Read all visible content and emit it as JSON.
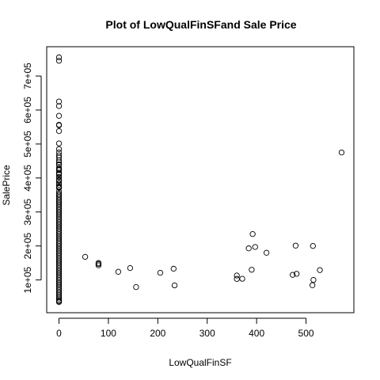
{
  "chart_data": {
    "type": "scatter",
    "title": "Plot of LowQualFinSFand Sale Price",
    "xlabel": "LowQualFinSF",
    "ylabel": "SalePrice",
    "xlim": [
      0,
      572
    ],
    "ylim": [
      34900,
      755000
    ],
    "x_ticks": [
      0,
      100,
      200,
      300,
      400,
      500
    ],
    "x_tick_labels": [
      "0",
      "100",
      "200",
      "300",
      "400",
      "500"
    ],
    "y_ticks": [
      100000,
      200000,
      300000,
      400000,
      500000,
      600000,
      700000
    ],
    "y_tick_labels": [
      "1e+05",
      "2e+05",
      "3e+05",
      "4e+05",
      "5e+05",
      "6e+05",
      "7e+05"
    ],
    "grid": false,
    "legend": "none",
    "marker_color": "#000000",
    "points": [
      [
        0,
        755000
      ],
      [
        0,
        745000
      ],
      [
        0,
        625000
      ],
      [
        0,
        611657
      ],
      [
        0,
        582933
      ],
      [
        0,
        556581
      ],
      [
        0,
        555000
      ],
      [
        0,
        538000
      ],
      [
        0,
        501837
      ],
      [
        0,
        485000
      ],
      [
        0,
        475000
      ],
      [
        0,
        466500
      ],
      [
        0,
        460000
      ],
      [
        0,
        451950
      ],
      [
        0,
        446261
      ],
      [
        0,
        440000
      ],
      [
        0,
        438780
      ],
      [
        0,
        430000
      ],
      [
        0,
        426000
      ],
      [
        0,
        423000
      ],
      [
        0,
        415298
      ],
      [
        0,
        412500
      ],
      [
        0,
        410000
      ],
      [
        0,
        402861
      ],
      [
        0,
        402000
      ],
      [
        0,
        394617
      ],
      [
        0,
        392500
      ],
      [
        0,
        392000
      ],
      [
        0,
        385000
      ],
      [
        0,
        380000
      ],
      [
        0,
        375000
      ],
      [
        0,
        372500
      ],
      [
        0,
        370878
      ],
      [
        0,
        360000
      ],
      [
        0,
        354000
      ],
      [
        0,
        350000
      ],
      [
        0,
        345000
      ],
      [
        0,
        340000
      ],
      [
        0,
        335000
      ],
      [
        0,
        330000
      ],
      [
        0,
        325000
      ],
      [
        0,
        320000
      ],
      [
        0,
        315000
      ],
      [
        0,
        310000
      ],
      [
        0,
        305000
      ],
      [
        0,
        300000
      ],
      [
        0,
        295000
      ],
      [
        0,
        290000
      ],
      [
        0,
        285000
      ],
      [
        0,
        280000
      ],
      [
        0,
        275000
      ],
      [
        0,
        270000
      ],
      [
        0,
        265000
      ],
      [
        0,
        260000
      ],
      [
        0,
        255000
      ],
      [
        0,
        250000
      ],
      [
        0,
        245000
      ],
      [
        0,
        240000
      ],
      [
        0,
        235000
      ],
      [
        0,
        230000
      ],
      [
        0,
        225000
      ],
      [
        0,
        220000
      ],
      [
        0,
        215000
      ],
      [
        0,
        210000
      ],
      [
        0,
        205000
      ],
      [
        0,
        200000
      ],
      [
        0,
        195000
      ],
      [
        0,
        190000
      ],
      [
        0,
        185000
      ],
      [
        0,
        180000
      ],
      [
        0,
        175000
      ],
      [
        0,
        170000
      ],
      [
        0,
        165000
      ],
      [
        0,
        160000
      ],
      [
        0,
        155000
      ],
      [
        0,
        150000
      ],
      [
        0,
        145000
      ],
      [
        0,
        140000
      ],
      [
        0,
        135000
      ],
      [
        0,
        130000
      ],
      [
        0,
        125000
      ],
      [
        0,
        120000
      ],
      [
        0,
        115000
      ],
      [
        0,
        110000
      ],
      [
        0,
        105000
      ],
      [
        0,
        100000
      ],
      [
        0,
        95000
      ],
      [
        0,
        90000
      ],
      [
        0,
        85000
      ],
      [
        0,
        80000
      ],
      [
        0,
        75000
      ],
      [
        0,
        70000
      ],
      [
        0,
        65000
      ],
      [
        0,
        60000
      ],
      [
        0,
        55000
      ],
      [
        0,
        50000
      ],
      [
        0,
        45000
      ],
      [
        0,
        40000
      ],
      [
        0,
        37900
      ],
      [
        0,
        34900
      ],
      [
        53,
        168000
      ],
      [
        80,
        150000
      ],
      [
        80,
        147000
      ],
      [
        80,
        143000
      ],
      [
        120,
        124000
      ],
      [
        144,
        135000
      ],
      [
        156,
        79000
      ],
      [
        205,
        121000
      ],
      [
        232,
        133000
      ],
      [
        234,
        84000
      ],
      [
        360,
        113000
      ],
      [
        360,
        103000
      ],
      [
        371,
        103500
      ],
      [
        384,
        193000
      ],
      [
        390,
        130000
      ],
      [
        392,
        235000
      ],
      [
        397,
        197000
      ],
      [
        420,
        180000
      ],
      [
        473,
        115000
      ],
      [
        479,
        201000
      ],
      [
        481,
        118000
      ],
      [
        513,
        84500
      ],
      [
        514,
        200000
      ],
      [
        515,
        100000
      ],
      [
        528,
        129000
      ],
      [
        572,
        475000
      ]
    ]
  }
}
